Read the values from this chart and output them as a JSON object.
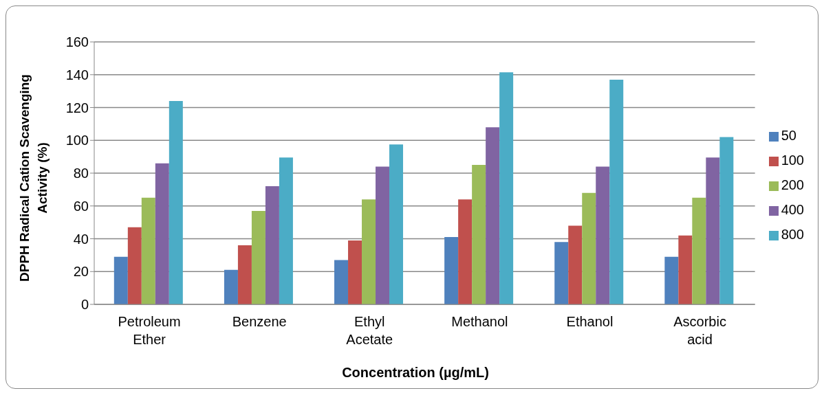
{
  "chart_data": {
    "type": "bar",
    "xlabel": "Concentration (µg/mL)",
    "ylabel": "DPPH Radical Cation Scavenging Activity (%)",
    "categories": [
      "Petroleum Ether",
      "Benzene",
      "Ethyl Acetate",
      "Methanol",
      "Ethanol",
      "Ascorbic acid"
    ],
    "series": [
      {
        "name": "50",
        "color": "#4f81bd",
        "values": [
          29,
          21,
          27,
          41,
          38,
          29
        ]
      },
      {
        "name": "100",
        "color": "#c0504d",
        "values": [
          47,
          36,
          39,
          64,
          48,
          42
        ]
      },
      {
        "name": "200",
        "color": "#9bbb59",
        "values": [
          65,
          57,
          64,
          85,
          68,
          65
        ]
      },
      {
        "name": "400",
        "color": "#8064a2",
        "values": [
          86,
          72,
          84,
          108,
          84,
          89.5
        ]
      },
      {
        "name": "800",
        "color": "#4bacc6",
        "values": [
          124,
          89.5,
          97.5,
          141.5,
          137,
          102
        ]
      }
    ],
    "ylim": [
      0,
      160
    ],
    "yticks": [
      0,
      20,
      40,
      60,
      80,
      100,
      120,
      140,
      160
    ],
    "grid": "y",
    "legend": "right"
  }
}
